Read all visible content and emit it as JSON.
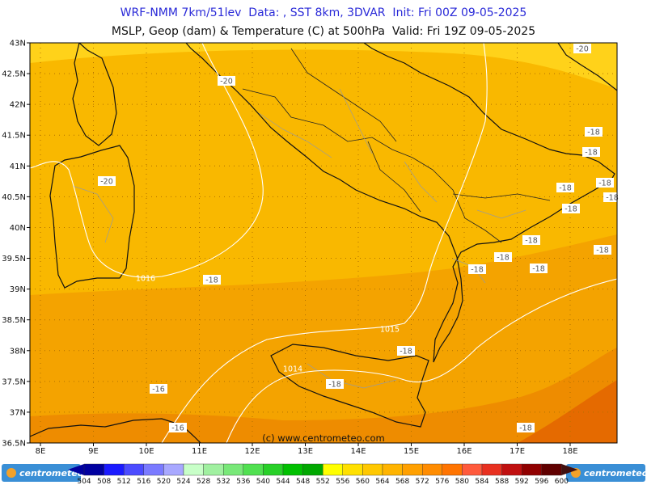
{
  "header": {
    "line1": "WRF-NMM 7km/51lev  Data: , SST 8km, 3DVAR  Init: Fri 00Z 09-05-2025",
    "line2": "MSLP, Geop (dam) & Temperature (C) at 500hPa  Valid: Fri 19Z 09-05-2025"
  },
  "map": {
    "lat_ticks": [
      "43N",
      "42.5N",
      "42N",
      "41.5N",
      "41N",
      "40.5N",
      "40N",
      "39.5N",
      "39N",
      "38.5N",
      "38N",
      "37.5N",
      "37N",
      "36.5N"
    ],
    "lon_ticks": [
      "8E",
      "9E",
      "10E",
      "11E",
      "12E",
      "13E",
      "14E",
      "15E",
      "16E",
      "17E",
      "18E"
    ],
    "copyright": "(c) www.centrometeo.com",
    "isobar_labels": [
      "1016",
      "1015",
      "1014"
    ],
    "temperature_labels": [
      "-20",
      "-20",
      "-20",
      "-18",
      "-18",
      "-18",
      "-18",
      "-18",
      "-18",
      "-18",
      "-18",
      "-18",
      "-18",
      "-18",
      "-18",
      "-18",
      "-18",
      "-18",
      "-16",
      "-16"
    ],
    "fill_colors": {
      "c560": "#ffd21a",
      "c564": "#f9b800",
      "c568": "#f4a300",
      "c572": "#ee8c00",
      "c576": "#e56a00"
    }
  },
  "colorbar": {
    "values": [
      "504",
      "508",
      "512",
      "516",
      "520",
      "524",
      "528",
      "532",
      "536",
      "540",
      "544",
      "548",
      "552",
      "556",
      "560",
      "564",
      "568",
      "572",
      "576",
      "580",
      "584",
      "588",
      "592",
      "596",
      "600"
    ],
    "colors": [
      "#0000a0",
      "#1a1aff",
      "#4b4bff",
      "#7a7aff",
      "#a8a8ff",
      "#c8ffc8",
      "#a0f0a0",
      "#78e878",
      "#50e050",
      "#28d028",
      "#00c000",
      "#00a800",
      "#ffff00",
      "#ffe000",
      "#ffc800",
      "#ffb400",
      "#ffa000",
      "#ff8c00",
      "#ff7400",
      "#ff5a3c",
      "#e83020",
      "#c01010",
      "#900000",
      "#600000",
      "#401010"
    ],
    "logo_left": "centrometeo",
    "logo_right": "centrometeo"
  }
}
